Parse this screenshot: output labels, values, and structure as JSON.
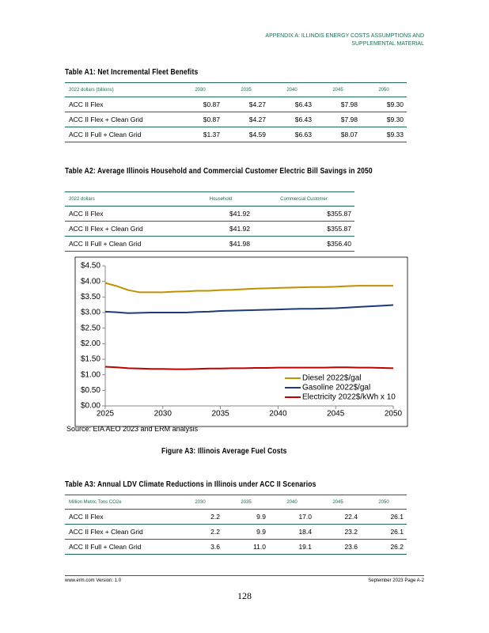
{
  "header": {
    "right": "APPENDIX A: ILLINOIS ENERGY COSTS ASSUMPTIONS AND SUPPLEMENTAL MATERIAL"
  },
  "table_a1": {
    "title": "Table A1: Net Incremental Fleet Benefits",
    "columns": [
      "2022 dollars (billions)",
      "2030",
      "2035",
      "2040",
      "2045",
      "2050"
    ],
    "rows": [
      [
        "ACC II Flex",
        "$0.87",
        "$4.27",
        "$6.43",
        "$7.98",
        "$9.30"
      ],
      [
        "ACC II Flex + Clean Grid",
        "$0.87",
        "$4.27",
        "$6.43",
        "$7.98",
        "$9.30"
      ],
      [
        "ACC II Full + Clean Grid",
        "$1.37",
        "$4.59",
        "$6.63",
        "$8.07",
        "$9.33"
      ]
    ]
  },
  "table_a2": {
    "title": "Table A2: Average Illinois Household and Commercial Customer Electric Bill Savings in 2050",
    "columns": [
      "2022 dollars",
      "Household",
      "Commercial Customer"
    ],
    "rows": [
      [
        "ACC II Flex",
        "$41.92",
        "$355.87"
      ],
      [
        "ACC II Flex + Clean Grid",
        "$41.92",
        "$355.87"
      ],
      [
        "ACC II Full + Clean Grid",
        "$41.98",
        "$356.40"
      ]
    ]
  },
  "chart_data": {
    "type": "line",
    "x": [
      2025,
      2026,
      2027,
      2028,
      2029,
      2030,
      2031,
      2032,
      2033,
      2034,
      2035,
      2036,
      2037,
      2038,
      2039,
      2040,
      2041,
      2042,
      2043,
      2044,
      2045,
      2046,
      2047,
      2048,
      2049,
      2050
    ],
    "series": [
      {
        "name": "Diesel 2022$/gal",
        "color": "#c09000",
        "values": [
          3.95,
          3.85,
          3.72,
          3.65,
          3.65,
          3.65,
          3.67,
          3.68,
          3.7,
          3.7,
          3.72,
          3.73,
          3.75,
          3.77,
          3.78,
          3.79,
          3.8,
          3.81,
          3.82,
          3.82,
          3.83,
          3.85,
          3.86,
          3.86,
          3.86,
          3.86
        ]
      },
      {
        "name": "Gasoline 2022$/gal",
        "color": "#1f3a7a",
        "values": [
          3.03,
          3.01,
          2.98,
          2.99,
          3.0,
          3.0,
          3.0,
          3.0,
          3.02,
          3.03,
          3.05,
          3.06,
          3.07,
          3.08,
          3.09,
          3.1,
          3.11,
          3.12,
          3.12,
          3.13,
          3.14,
          3.16,
          3.18,
          3.2,
          3.22,
          3.24
        ]
      },
      {
        "name": "Electricity 2022$/kWh x 10",
        "color": "#c00000",
        "values": [
          1.26,
          1.24,
          1.21,
          1.2,
          1.19,
          1.19,
          1.18,
          1.18,
          1.19,
          1.2,
          1.2,
          1.21,
          1.21,
          1.22,
          1.22,
          1.23,
          1.23,
          1.23,
          1.23,
          1.23,
          1.24,
          1.24,
          1.23,
          1.23,
          1.22,
          1.21
        ]
      }
    ],
    "xlim": [
      2025,
      2050
    ],
    "xticks": [
      2025,
      2030,
      2035,
      2040,
      2045,
      2050
    ],
    "ylim": [
      0,
      4.5
    ],
    "yticks": [
      {
        "value": 0,
        "label": "$0.00"
      },
      {
        "value": 0.5,
        "label": "$0.50"
      },
      {
        "value": 1,
        "label": "$1.00"
      },
      {
        "value": 1.5,
        "label": "$1.50"
      },
      {
        "value": 2,
        "label": "$2.00"
      },
      {
        "value": 2.5,
        "label": "$2.50"
      },
      {
        "value": 3,
        "label": "$3.00"
      },
      {
        "value": 3.5,
        "label": "$3.50"
      },
      {
        "value": 4,
        "label": "$4.00"
      },
      {
        "value": 4.5,
        "label": "$4.50"
      }
    ],
    "grid": false,
    "legend": "lower right"
  },
  "source": "Source: EIA AEO 2023 and ERM analysis",
  "figure_caption": "Figure A3: Illinois Average Fuel Costs",
  "table_a3": {
    "title": "Table A3: Annual LDV Climate Reductions in Illinois under ACC II Scenarios",
    "columns": [
      "Million Metric Tons CO2e",
      "2030",
      "2035",
      "2040",
      "2045",
      "2050"
    ],
    "rows": [
      [
        "ACC II Flex",
        "2.2",
        "9.9",
        "17.0",
        "22.4",
        "26.1"
      ],
      [
        "ACC II Flex + Clean Grid",
        "2.2",
        "9.9",
        "18.4",
        "23.2",
        "26.1"
      ],
      [
        "ACC II Full + Clean Grid",
        "3.6",
        "11.0",
        "19.1",
        "23.6",
        "26.2"
      ]
    ]
  },
  "footer": {
    "left": "www.erm.com Version: 1.0",
    "right": "September 2023 Page A-2",
    "page": "128"
  }
}
